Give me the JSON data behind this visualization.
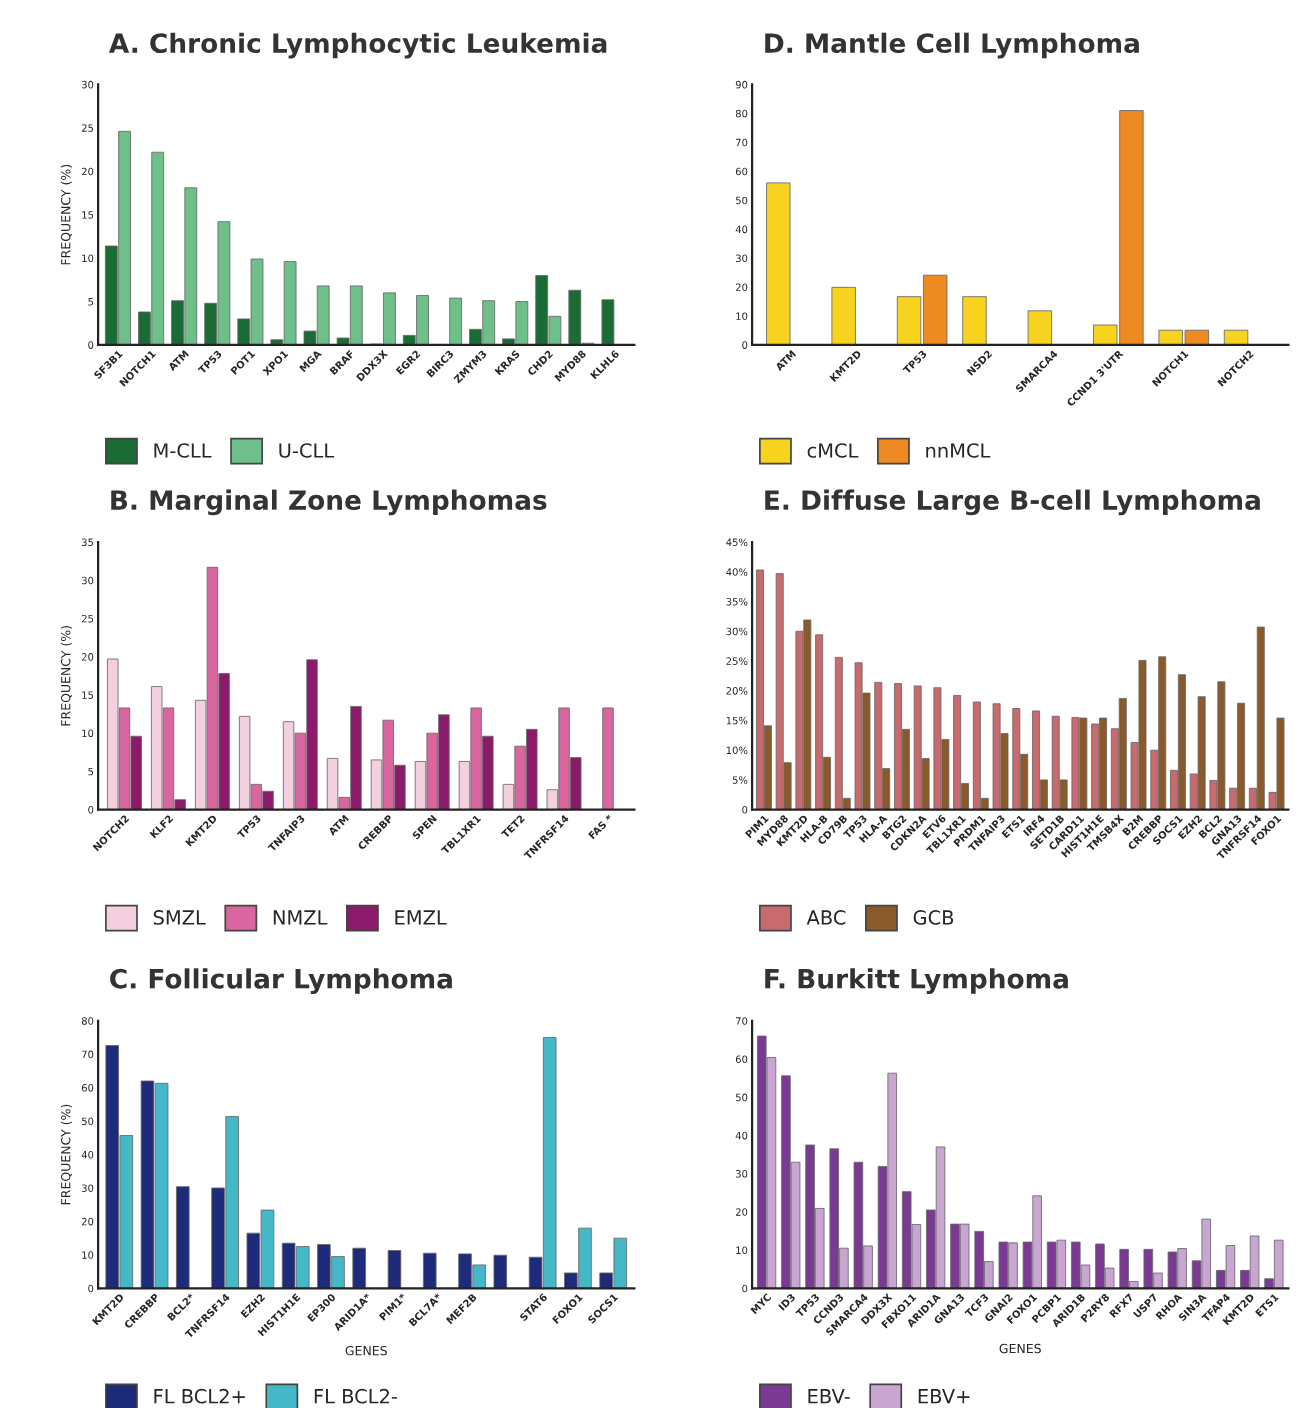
{
  "chart_data": [
    {
      "type": "bar",
      "title": "A. Chronic Lymphocytic Leukemia",
      "ylabel": "FREQUENCY (%)",
      "legend": "bottom",
      "grid": false,
      "categories": [
        "SF3B1",
        "NOTCH1",
        "ATM",
        "TP53",
        "POT1",
        "XPO1",
        "MGA",
        "BRAF",
        "DDX3X",
        "EGR2",
        "BIRC3",
        "ZMYM3",
        "KRAS",
        "CHD2",
        "MYD88",
        "KLHL6"
      ],
      "ylim": [
        0,
        30
      ],
      "yticks": [
        0,
        5,
        10,
        15,
        20,
        25,
        30
      ],
      "series": [
        {
          "name": "M-CLL",
          "color": "#1b6b35",
          "values": [
            11.4,
            3.8,
            5.1,
            4.8,
            3.0,
            0.6,
            1.6,
            0.8,
            0.1,
            1.1,
            null,
            1.8,
            0.7,
            8.0,
            6.3,
            5.2
          ]
        },
        {
          "name": "U-CLL",
          "color": "#6fbf8a",
          "values": [
            24.6,
            22.2,
            18.1,
            14.2,
            9.9,
            9.6,
            6.8,
            6.8,
            6.0,
            5.7,
            5.4,
            5.1,
            5.0,
            3.3,
            0.2,
            null
          ]
        }
      ]
    },
    {
      "type": "bar",
      "title": "D. Mantle Cell Lymphoma",
      "legend": "bottom",
      "grid": false,
      "categories": [
        "ATM",
        "KMT2D",
        "TP53",
        "NSD2",
        "SMARCA4",
        "CCND1 3'UTR",
        "NOTCH1",
        "NOTCH2"
      ],
      "ylim": [
        0,
        90
      ],
      "yticks": [
        0,
        10,
        20,
        30,
        40,
        50,
        60,
        70,
        80,
        90
      ],
      "series": [
        {
          "name": "cMCL",
          "color": "#f7d21e",
          "values": [
            56,
            19.9,
            16.7,
            16.7,
            11.8,
            6.9,
            5.1,
            5.1
          ]
        },
        {
          "name": "nnMCL",
          "color": "#ee8a22",
          "values": [
            null,
            null,
            24.1,
            null,
            null,
            81,
            5.1,
            null
          ]
        }
      ]
    },
    {
      "type": "bar",
      "title": "B. Marginal Zone Lymphomas",
      "ylabel": "FREQUENCY (%)",
      "legend": "bottom",
      "grid": false,
      "categories": [
        "NOTCH2",
        "KLF2",
        "KMT2D",
        "TP53",
        "TNFAIP3",
        "ATM",
        "CREBBP",
        "SPEN",
        "TBL1XR1",
        "TET2",
        "TNFRSF14",
        "FAS *"
      ],
      "ylim": [
        0,
        35
      ],
      "yticks": [
        0,
        5,
        10,
        15,
        20,
        25,
        30,
        35
      ],
      "series": [
        {
          "name": "SMZL",
          "color": "#f4cfe0",
          "values": [
            19.7,
            16.1,
            14.3,
            12.2,
            11.5,
            6.7,
            6.5,
            6.3,
            6.3,
            3.3,
            2.6,
            null
          ]
        },
        {
          "name": "NMZL",
          "color": "#d9669f",
          "values": [
            13.3,
            13.3,
            31.7,
            3.3,
            10.0,
            1.6,
            11.7,
            10.0,
            13.3,
            8.3,
            13.3,
            13.3
          ]
        },
        {
          "name": "EMZL",
          "color": "#8b1a6b",
          "values": [
            9.6,
            1.3,
            17.8,
            2.4,
            19.6,
            13.5,
            5.8,
            12.4,
            9.6,
            10.5,
            6.8,
            null
          ]
        }
      ]
    },
    {
      "type": "bar",
      "title": "E. Diffuse Large B-cell Lymphoma",
      "legend": "bottom",
      "grid": false,
      "categories": [
        "PIM1",
        "MYD88",
        "KMT2D",
        "HLA-B",
        "CD79B",
        "TP53",
        "HLA-A",
        "BTG2",
        "CDKN2A",
        "ETV6",
        "TBL1XR1",
        "PRDM1",
        "TNFAIP3",
        "ETS1",
        "IRF4",
        "SETD1B",
        "CARD11",
        "HIST1H1E",
        "TMSB4X",
        "B2M",
        "CREBBP",
        "SOCS1",
        "EZH2",
        "BCL2",
        "GNA13",
        "TNFRSF14",
        "FOXO1"
      ],
      "ylim": [
        0,
        45
      ],
      "yticks": [
        0,
        {
          "value": 5,
          "label": "5%"
        },
        {
          "value": 10,
          "label": "10%"
        },
        {
          "value": 15,
          "label": "15%"
        },
        {
          "value": 20,
          "label": "20%"
        },
        {
          "value": 25,
          "label": "25%"
        },
        {
          "value": 30,
          "label": "30%"
        },
        {
          "value": 35,
          "label": "35%"
        },
        {
          "value": 40,
          "label": "40%"
        },
        {
          "value": 45,
          "label": "45%"
        }
      ],
      "series": [
        {
          "name": "ABC",
          "color": "#c96a6e",
          "values": [
            40.3,
            39.7,
            30.0,
            29.4,
            25.6,
            24.7,
            21.4,
            21.2,
            20.8,
            20.5,
            19.2,
            18.1,
            17.8,
            17.0,
            16.6,
            15.7,
            15.5,
            14.4,
            13.6,
            11.3,
            10.0,
            6.6,
            6.0,
            4.9,
            3.6,
            3.6,
            2.9
          ]
        },
        {
          "name": "GCB",
          "color": "#8b5a2b",
          "values": [
            14.1,
            7.9,
            31.9,
            8.8,
            1.9,
            19.6,
            6.9,
            13.5,
            8.6,
            11.8,
            4.4,
            1.9,
            12.8,
            9.3,
            5.0,
            5.0,
            15.4,
            15.4,
            18.7,
            25.1,
            25.7,
            22.7,
            19.0,
            21.5,
            17.9,
            30.7,
            15.4
          ]
        }
      ]
    },
    {
      "type": "bar",
      "title": "C. Follicular Lymphoma",
      "ylabel": "FREQUENCY (%)",
      "xlabel": "GENES",
      "legend": "bottom",
      "grid": false,
      "categories": [
        "KMT2D",
        "CREBBP",
        "BCL2*",
        "TNFRSF14",
        "EZH2",
        "HIST1H1E",
        "EP300",
        "ARID1A*",
        "PIM1*",
        "BCL7A*",
        "MEF2B",
        null,
        "STAT6",
        "FOXO1",
        "SOCS1"
      ],
      "ylim": [
        0,
        80
      ],
      "yticks": [
        0,
        10,
        20,
        30,
        40,
        50,
        60,
        70,
        80
      ],
      "series": [
        {
          "name": "FL BCL2+",
          "color": "#1e2a7a",
          "values": [
            72.6,
            62.0,
            30.4,
            30.0,
            16.5,
            13.5,
            13.1,
            12.0,
            11.3,
            10.5,
            10.3,
            9.9,
            9.3,
            4.6,
            4.6
          ]
        },
        {
          "name": "FL BCL2-",
          "color": "#45b8c8",
          "values": [
            45.7,
            61.3,
            null,
            51.4,
            23.4,
            12.5,
            9.5,
            null,
            null,
            null,
            7.0,
            null,
            75.0,
            18.0,
            15.0
          ]
        }
      ]
    },
    {
      "type": "bar",
      "title": "F. Burkitt Lymphoma",
      "xlabel": "GENES",
      "legend": "bottom",
      "grid": false,
      "categories": [
        "MYC",
        "ID3",
        "TP53",
        "CCND3",
        "SMARCA4",
        "DDX3X",
        "FBXO11",
        "ARID1A",
        "GNA13",
        "TCF3",
        "GNAI2",
        "FOXO1",
        "PCBP1",
        "ARID1B",
        "P2RY8",
        "RFX7",
        "USP7",
        "RHOA",
        "SIN3A",
        "TFAP4",
        "KMT2D",
        "ETS1"
      ],
      "ylim": [
        0,
        70
      ],
      "yticks": [
        0,
        10,
        20,
        30,
        40,
        50,
        60,
        70
      ],
      "series": [
        {
          "name": "EBV-",
          "color": "#7a3a93",
          "values": [
            66,
            55.6,
            37.5,
            36.5,
            33.0,
            31.9,
            25.3,
            20.5,
            16.8,
            14.9,
            12.1,
            12.1,
            12.1,
            12.1,
            11.6,
            10.2,
            10.2,
            9.5,
            7.2,
            4.7,
            4.7,
            2.5
          ]
        },
        {
          "name": "EBV+",
          "color": "#c9a6d2",
          "values": [
            60.4,
            33.0,
            20.9,
            10.5,
            11.1,
            56.3,
            16.7,
            37.0,
            16.8,
            7.0,
            11.9,
            24.2,
            12.6,
            6.1,
            5.3,
            1.8,
            4.0,
            10.4,
            18.1,
            11.2,
            13.7,
            12.6
          ]
        }
      ]
    }
  ]
}
